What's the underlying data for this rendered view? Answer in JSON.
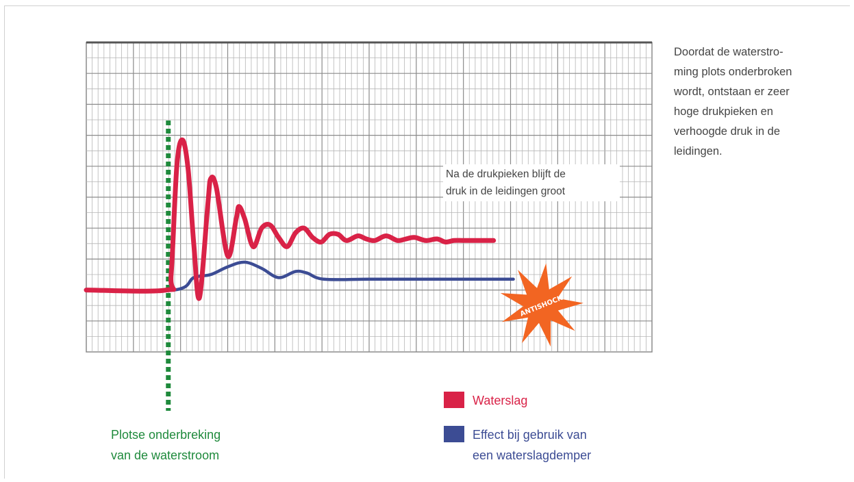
{
  "description_text": "Doordat de waterstro-ming plots onderbroken wordt, ontstaan er zeer hoge drukpieken en verhoogde druk in de leidingen.",
  "description_lines": [
    "Doordat de waterstro-",
    "ming plots onderbroken",
    "wordt, ontstaan er zeer",
    "hoge drukpieken en",
    "verhoogde druk in de",
    "leidingen."
  ],
  "annotation_lines": [
    "Na de drukpieken blijft de",
    "druk in de leidingen groot"
  ],
  "interruption_caption_lines": [
    "Plotse onderbreking",
    "van de waterstroom"
  ],
  "legend": [
    {
      "lines": [
        "Waterslag"
      ],
      "color": "#d92247"
    },
    {
      "lines": [
        "Effect bij gebruik van",
        "een waterslagdemper"
      ],
      "color": "#3c4c94"
    }
  ],
  "badge_text": "ANTISHOCK",
  "colors": {
    "waterslag": "#d92247",
    "damper": "#3c4c94",
    "interruption": "#1f8a3c",
    "badge": "#f26522",
    "grid": "#b5b5b5",
    "grid_major": "#8a8a8a"
  },
  "chart_data": {
    "type": "line",
    "title": "",
    "xlabel": "",
    "ylabel": "",
    "xlim": [
      0,
      100
    ],
    "ylim": [
      0,
      100
    ],
    "grid": true,
    "tick_labels": false,
    "legend_placement": "bottom-right",
    "interruption_x": 14.5,
    "series": [
      {
        "name": "Waterslag",
        "color": "#d92247",
        "points": [
          [
            0,
            20
          ],
          [
            14.2,
            20
          ],
          [
            15,
            25
          ],
          [
            16,
            60
          ],
          [
            17,
            68.5
          ],
          [
            18,
            59
          ],
          [
            19,
            35
          ],
          [
            20,
            17.5
          ],
          [
            21.5,
            48
          ],
          [
            22,
            56
          ],
          [
            23,
            53
          ],
          [
            25,
            31
          ],
          [
            26.5,
            43
          ],
          [
            27,
            47
          ],
          [
            28,
            43
          ],
          [
            29.5,
            34
          ],
          [
            31,
            40
          ],
          [
            32.5,
            41
          ],
          [
            34,
            37
          ],
          [
            35.5,
            34
          ],
          [
            37,
            38.5
          ],
          [
            38.5,
            40
          ],
          [
            40,
            37
          ],
          [
            41.5,
            35.5
          ],
          [
            43,
            38
          ],
          [
            44.5,
            38
          ],
          [
            46,
            36
          ],
          [
            48,
            37.5
          ],
          [
            49.5,
            36.5
          ],
          [
            51,
            36
          ],
          [
            53,
            37.5
          ],
          [
            55,
            36
          ],
          [
            56.5,
            36.5
          ],
          [
            58,
            37
          ],
          [
            60,
            36
          ],
          [
            62,
            36.5
          ],
          [
            63.5,
            35.5
          ],
          [
            65,
            36
          ],
          [
            67,
            36
          ],
          [
            72,
            36
          ]
        ]
      },
      {
        "name": "Effect bij gebruik van een waterslagdemper",
        "color": "#3c4c94",
        "points": [
          [
            0,
            20
          ],
          [
            15.5,
            20
          ],
          [
            19,
            24
          ],
          [
            22,
            25
          ],
          [
            25,
            27.5
          ],
          [
            28,
            29
          ],
          [
            31,
            27
          ],
          [
            34,
            24
          ],
          [
            37,
            26
          ],
          [
            39,
            25.5
          ],
          [
            42,
            23.5
          ],
          [
            50,
            23.5
          ],
          [
            60,
            23.5
          ],
          [
            75.5,
            23.5
          ]
        ]
      }
    ]
  }
}
